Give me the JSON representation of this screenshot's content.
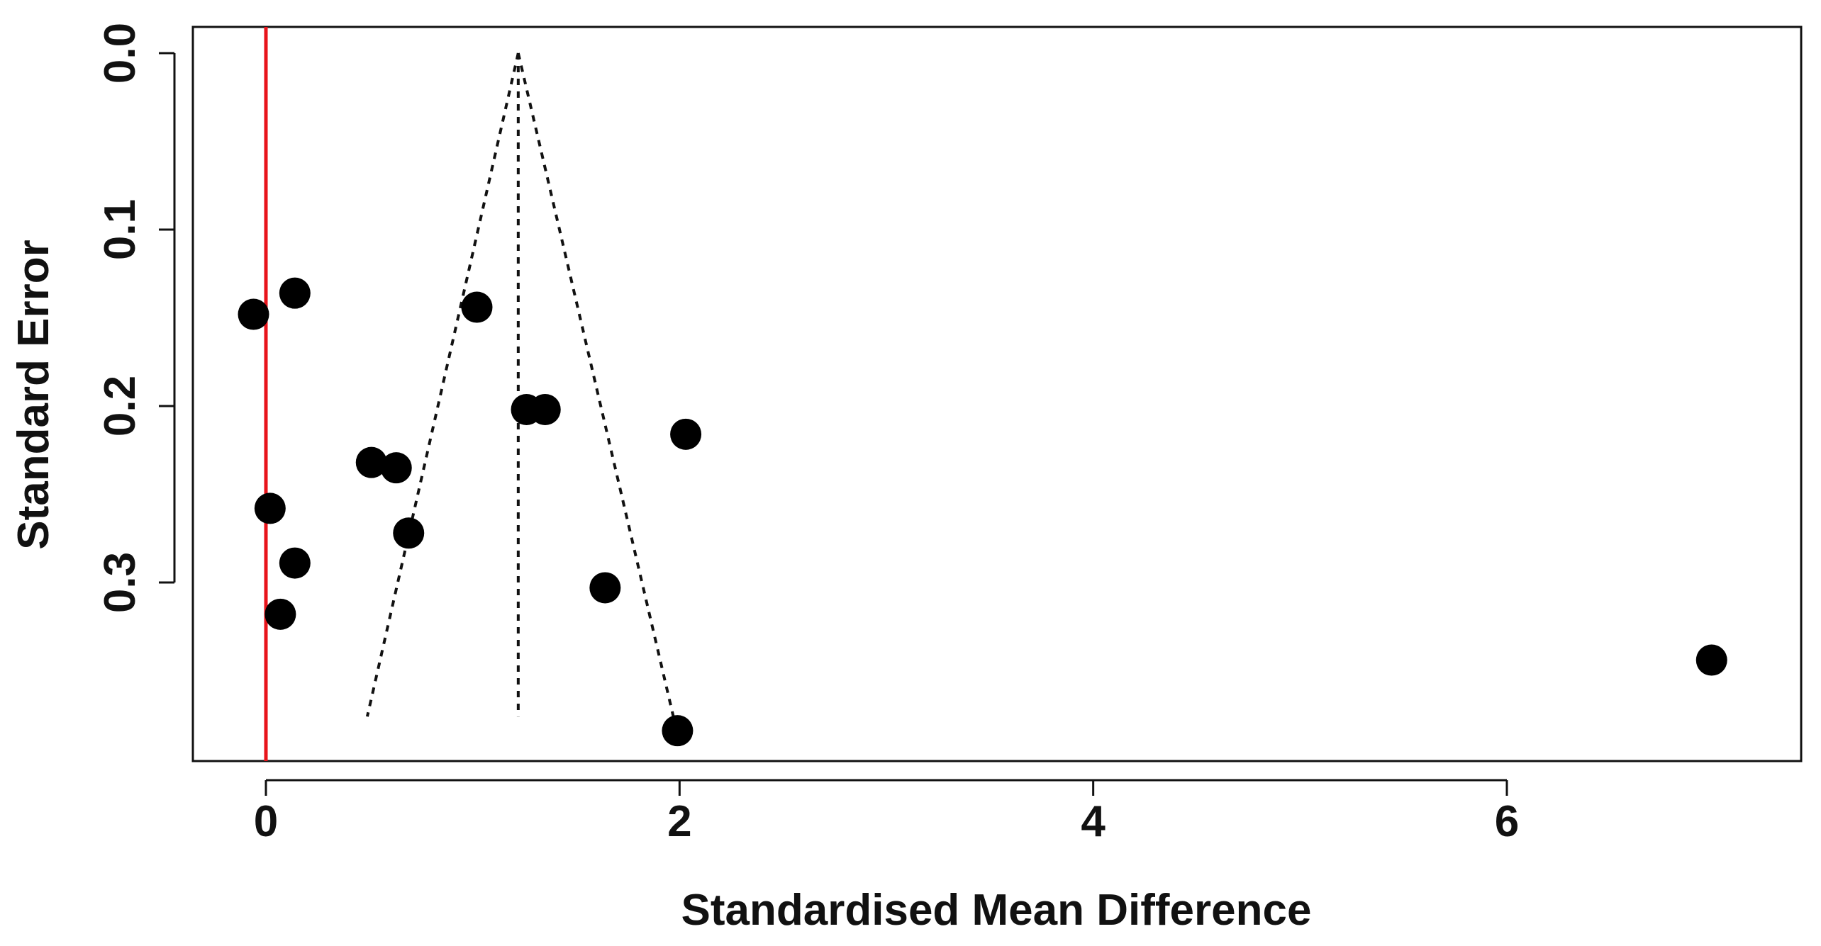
{
  "chart_data": {
    "type": "scatter",
    "subtype": "funnel-plot",
    "title": "",
    "xlabel": "Standardised Mean Difference",
    "ylabel": "Standard Error",
    "xlim": [
      -0.35,
      7.5
    ],
    "ylim": [
      0.0,
      0.4
    ],
    "y_inverted": true,
    "xticks": [
      0,
      2,
      4,
      6
    ],
    "xtick_labels": [
      "0",
      "2",
      "4",
      "6"
    ],
    "yticks": [
      0.0,
      0.1,
      0.2,
      0.3
    ],
    "ytick_labels": [
      "0.0",
      "0.1",
      "0.2",
      "0.3"
    ],
    "grid": false,
    "legend": "none",
    "reference_line": {
      "x": 0,
      "color": "#e8141b"
    },
    "pooled_estimate": 1.22,
    "funnel": {
      "apex": [
        1.22,
        0.0
      ],
      "left_base": [
        0.49,
        0.376
      ],
      "right_base": [
        1.97,
        0.376
      ],
      "center_base": [
        1.22,
        0.376
      ],
      "style": "dotted"
    },
    "points": [
      {
        "x": -0.06,
        "y": 0.148
      },
      {
        "x": 0.14,
        "y": 0.136
      },
      {
        "x": 1.02,
        "y": 0.144
      },
      {
        "x": 1.26,
        "y": 0.202
      },
      {
        "x": 1.35,
        "y": 0.202
      },
      {
        "x": 2.03,
        "y": 0.216
      },
      {
        "x": 0.51,
        "y": 0.232
      },
      {
        "x": 0.63,
        "y": 0.235
      },
      {
        "x": 0.02,
        "y": 0.258
      },
      {
        "x": 0.69,
        "y": 0.272
      },
      {
        "x": 0.14,
        "y": 0.289
      },
      {
        "x": 1.64,
        "y": 0.303
      },
      {
        "x": 0.07,
        "y": 0.318
      },
      {
        "x": 6.99,
        "y": 0.344
      },
      {
        "x": 1.99,
        "y": 0.384
      }
    ],
    "colors": {
      "points": "#000000",
      "reference_line": "#e8141b",
      "axes": "#111111"
    }
  }
}
